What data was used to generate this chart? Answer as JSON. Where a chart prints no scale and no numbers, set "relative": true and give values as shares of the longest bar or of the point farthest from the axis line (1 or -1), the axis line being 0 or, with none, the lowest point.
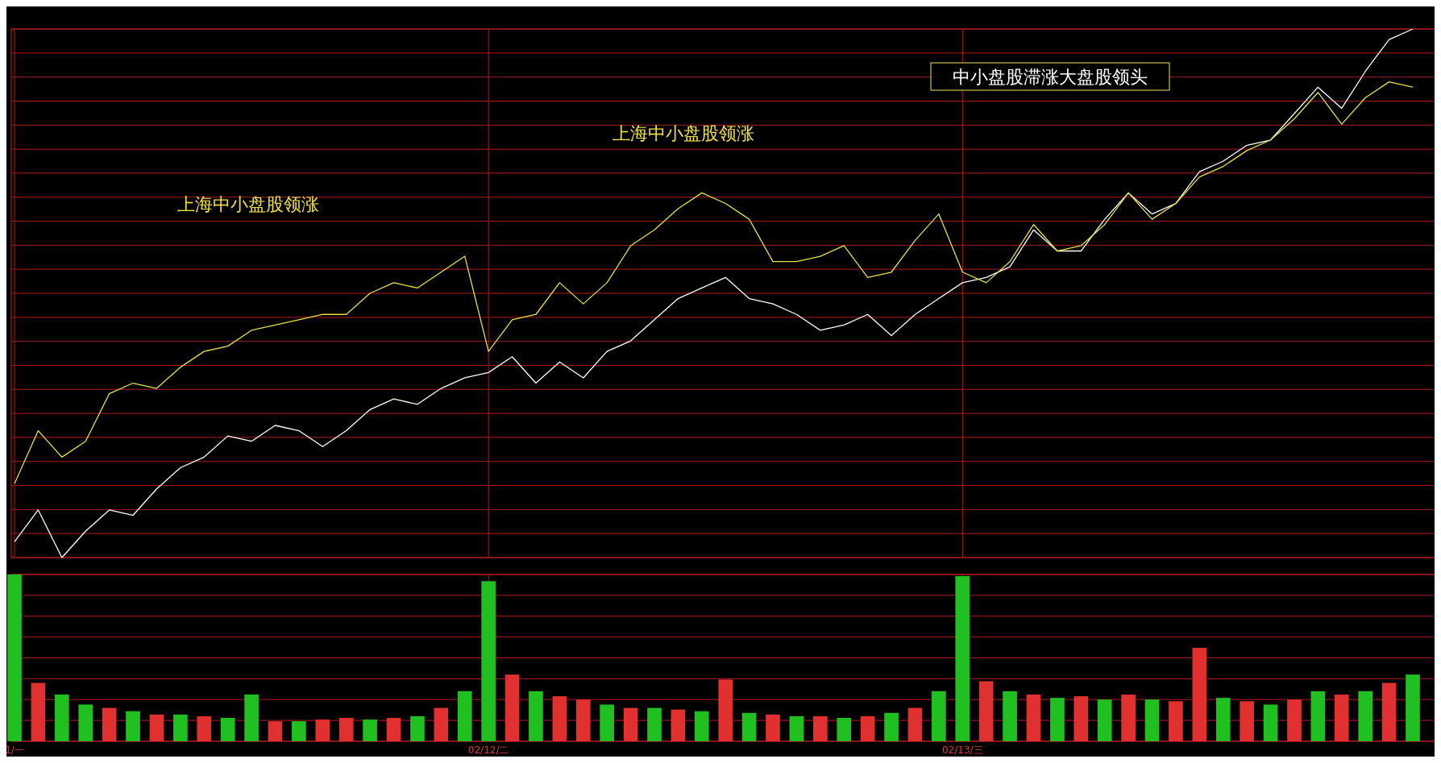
{
  "chart_data": [
    {
      "type": "line",
      "relative": true,
      "grid": true,
      "categories": [
        null,
        null,
        null,
        null,
        null,
        null,
        null,
        null,
        null,
        null,
        null,
        null,
        null,
        null,
        null,
        null,
        null,
        null,
        null,
        null,
        null,
        null,
        null,
        null,
        null,
        null,
        null,
        null,
        null,
        null,
        null,
        null,
        null,
        null,
        null,
        null,
        null,
        null,
        null,
        null,
        null,
        null,
        null,
        null,
        null,
        null,
        null,
        null,
        null,
        null,
        null,
        null,
        null,
        null,
        null,
        null,
        null,
        null,
        null,
        null
      ],
      "series": [
        {
          "color": "#ffffff",
          "values": [
            0.03,
            0.09,
            0.0,
            0.05,
            0.09,
            0.08,
            0.13,
            0.17,
            0.19,
            0.23,
            0.22,
            0.25,
            0.24,
            0.21,
            0.24,
            0.28,
            0.3,
            0.29,
            0.32,
            0.34,
            0.35,
            0.38,
            0.33,
            0.37,
            0.34,
            0.39,
            0.41,
            0.45,
            0.49,
            0.51,
            0.53,
            0.49,
            0.48,
            0.46,
            0.43,
            0.44,
            0.46,
            0.42,
            0.46,
            0.49,
            0.52,
            0.53,
            0.55,
            0.62,
            0.58,
            0.58,
            0.64,
            0.69,
            0.65,
            0.67,
            0.73,
            0.75,
            0.78,
            0.79,
            0.84,
            0.89,
            0.85,
            0.92,
            0.98,
            1.0
          ]
        },
        {
          "color": "#e8e040",
          "values": [
            0.14,
            0.24,
            0.19,
            0.22,
            0.31,
            0.33,
            0.32,
            0.36,
            0.39,
            0.4,
            0.43,
            0.44,
            0.45,
            0.46,
            0.46,
            0.5,
            0.52,
            0.51,
            0.54,
            0.57,
            0.39,
            0.45,
            0.46,
            0.52,
            0.48,
            0.52,
            0.59,
            0.62,
            0.66,
            0.69,
            0.67,
            0.64,
            0.56,
            0.56,
            0.57,
            0.59,
            0.53,
            0.54,
            0.6,
            0.65,
            0.54,
            0.52,
            0.56,
            0.63,
            0.58,
            0.59,
            0.63,
            0.69,
            0.64,
            0.67,
            0.72,
            0.74,
            0.77,
            0.79,
            0.83,
            0.88,
            0.82,
            0.87,
            0.9,
            0.89
          ]
        }
      ],
      "annotations": [
        "上海中小盘股领涨",
        "上海中小盘股领涨",
        "中小盘股滞涨大盘股领头"
      ]
    },
    {
      "type": "bar",
      "relative": true,
      "grid": true,
      "tick_labels": "x",
      "categories": [
        "1/一",
        null,
        null,
        null,
        null,
        null,
        null,
        null,
        null,
        null,
        null,
        null,
        null,
        null,
        null,
        null,
        null,
        null,
        null,
        null,
        "02/12/二",
        null,
        null,
        null,
        null,
        null,
        null,
        null,
        null,
        null,
        null,
        null,
        null,
        null,
        null,
        null,
        null,
        null,
        null,
        null,
        "02/13/三",
        null,
        null,
        null,
        null,
        null,
        null,
        null,
        null,
        null,
        null,
        null,
        null,
        null,
        null,
        null,
        null,
        null,
        null,
        null
      ],
      "values": [
        1.0,
        0.35,
        0.28,
        0.22,
        0.2,
        0.18,
        0.16,
        0.16,
        0.15,
        0.14,
        0.28,
        0.12,
        0.12,
        0.13,
        0.14,
        0.13,
        0.14,
        0.15,
        0.2,
        0.3,
        0.96,
        0.4,
        0.3,
        0.27,
        0.25,
        0.22,
        0.2,
        0.2,
        0.19,
        0.18,
        0.37,
        0.17,
        0.16,
        0.15,
        0.15,
        0.14,
        0.15,
        0.17,
        0.2,
        0.3,
        0.99,
        0.36,
        0.3,
        0.28,
        0.26,
        0.27,
        0.25,
        0.28,
        0.25,
        0.24,
        0.56,
        0.26,
        0.24,
        0.22,
        0.25,
        0.3,
        0.28,
        0.3,
        0.35,
        0.4
      ],
      "colors": [
        "#20c020",
        "#e03030",
        "#20c020",
        "#20c020",
        "#e03030",
        "#20c020",
        "#e03030",
        "#20c020",
        "#e03030",
        "#20c020",
        "#20c020",
        "#e03030",
        "#20c020",
        "#e03030",
        "#e03030",
        "#20c020",
        "#e03030",
        "#20c020",
        "#e03030",
        "#20c020",
        "#20c020",
        "#e03030",
        "#20c020",
        "#e03030",
        "#e03030",
        "#20c020",
        "#e03030",
        "#20c020",
        "#e03030",
        "#20c020",
        "#e03030",
        "#20c020",
        "#e03030",
        "#20c020",
        "#e03030",
        "#20c020",
        "#e03030",
        "#20c020",
        "#e03030",
        "#20c020",
        "#20c020",
        "#e03030",
        "#20c020",
        "#e03030",
        "#20c020",
        "#e03030",
        "#20c020",
        "#e03030",
        "#20c020",
        "#e03030",
        "#e03030",
        "#20c020",
        "#e03030",
        "#20c020",
        "#e03030",
        "#20c020",
        "#e03030",
        "#20c020",
        "#e03030",
        "#20c020"
      ]
    }
  ]
}
